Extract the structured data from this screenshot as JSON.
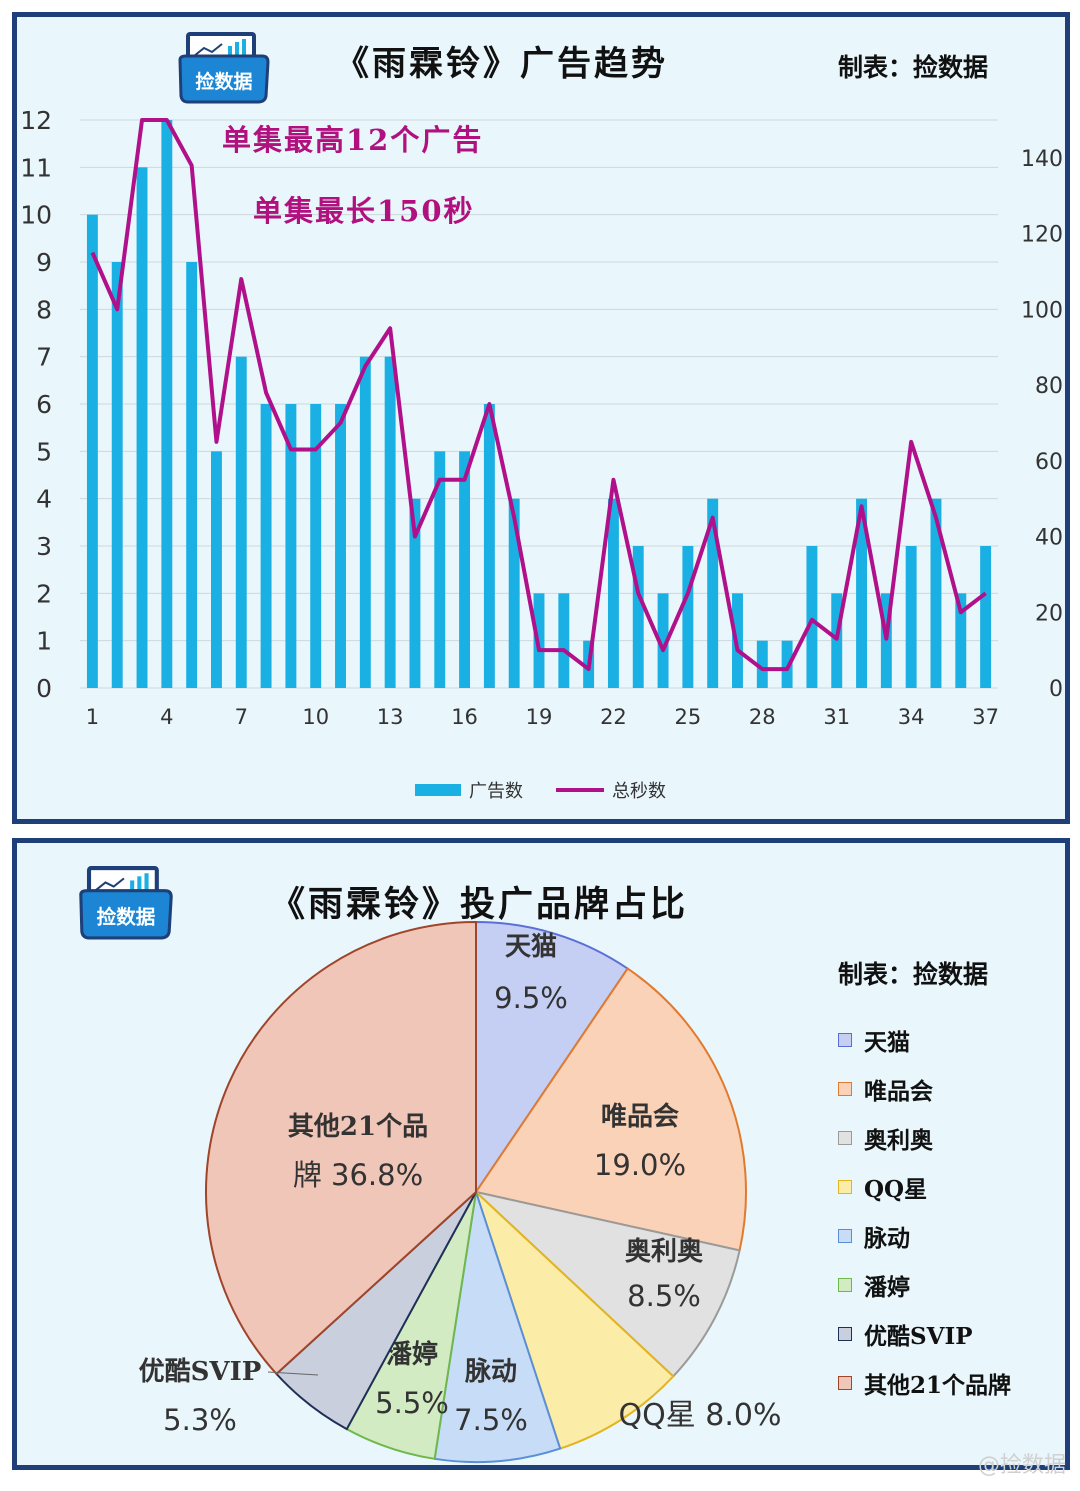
{
  "bar_line_chart": {
    "title": "《雨霖铃》广告趋势",
    "credit": "制表：捡数据",
    "logo_text": "捡数据",
    "annotation_max_ads": "单集最高12个广告",
    "annotation_max_seconds": "单集最长150秒",
    "legend": {
      "bars": "广告数",
      "line": "总秒数"
    },
    "colors": {
      "bar": "#1bb0e3",
      "line": "#b0118b"
    }
  },
  "pie_chart": {
    "title": "《雨霖铃》投广品牌占比",
    "credit": "制表：捡数据",
    "logo_text": "捡数据"
  },
  "watermark": "@捡数据",
  "chart_data": [
    {
      "type": "bar+line",
      "x": [
        1,
        2,
        3,
        4,
        5,
        6,
        7,
        8,
        9,
        10,
        11,
        12,
        13,
        14,
        15,
        16,
        17,
        18,
        19,
        20,
        21,
        22,
        23,
        24,
        25,
        26,
        27,
        28,
        29,
        30,
        31,
        32,
        33,
        34,
        35,
        36,
        37
      ],
      "xticks": [
        "1",
        "4",
        "7",
        "10",
        "13",
        "16",
        "19",
        "22",
        "25",
        "28",
        "31",
        "34",
        "37"
      ],
      "series": [
        {
          "name": "广告数",
          "axis": "left",
          "values": [
            10,
            9,
            11,
            12,
            9,
            5,
            7,
            6,
            6,
            6,
            6,
            7,
            7,
            4,
            5,
            5,
            6,
            4,
            2,
            2,
            1,
            4,
            3,
            2,
            3,
            4,
            2,
            1,
            1,
            3,
            2,
            4,
            2,
            3,
            4,
            2,
            3
          ]
        },
        {
          "name": "总秒数",
          "axis": "right",
          "values": [
            115,
            100,
            150,
            150,
            138,
            65,
            108,
            78,
            63,
            63,
            70,
            85,
            95,
            40,
            55,
            55,
            75,
            45,
            10,
            10,
            5,
            55,
            25,
            10,
            25,
            45,
            10,
            5,
            5,
            18,
            13,
            48,
            13,
            65,
            45,
            20,
            25
          ]
        }
      ],
      "ylim_left": [
        0,
        12
      ],
      "yticks_left": [
        0,
        1,
        2,
        3,
        4,
        5,
        6,
        7,
        8,
        9,
        10,
        11,
        12
      ],
      "ylim_right": [
        0,
        150
      ],
      "yticks_right": [
        0,
        20,
        40,
        60,
        80,
        100,
        120,
        140
      ],
      "grid": true,
      "legend_position": "bottom"
    },
    {
      "type": "pie",
      "slices": [
        {
          "name": "天猫",
          "value": 9.5,
          "label": "9.5%",
          "color": "#c5cff4",
          "edge": "#5b6fd8"
        },
        {
          "name": "唯品会",
          "value": 19.0,
          "label": "19.0%",
          "color": "#f9d2b8",
          "edge": "#e07a2e"
        },
        {
          "name": "奥利奥",
          "value": 8.5,
          "label": "8.5%",
          "color": "#e1e1e1",
          "edge": "#9a9a9a"
        },
        {
          "name": "QQ星",
          "value": 8.0,
          "label": "8.0%",
          "color": "#fbeca7",
          "edge": "#e3b420"
        },
        {
          "name": "脉动",
          "value": 7.5,
          "label": "7.5%",
          "color": "#c6dcf7",
          "edge": "#5a8fd8"
        },
        {
          "name": "潘婷",
          "value": 5.5,
          "label": "5.5%",
          "color": "#d2ebc3",
          "edge": "#6fb84b"
        },
        {
          "name": "优酷SVIP",
          "value": 5.3,
          "label": "5.3%",
          "color": "#c9cfdc",
          "edge": "#1f2f57"
        },
        {
          "name": "其他21个品牌",
          "value": 36.8,
          "label": "36.8%",
          "color": "#efc6b8",
          "edge": "#a0442a"
        }
      ],
      "legend_position": "right"
    }
  ]
}
